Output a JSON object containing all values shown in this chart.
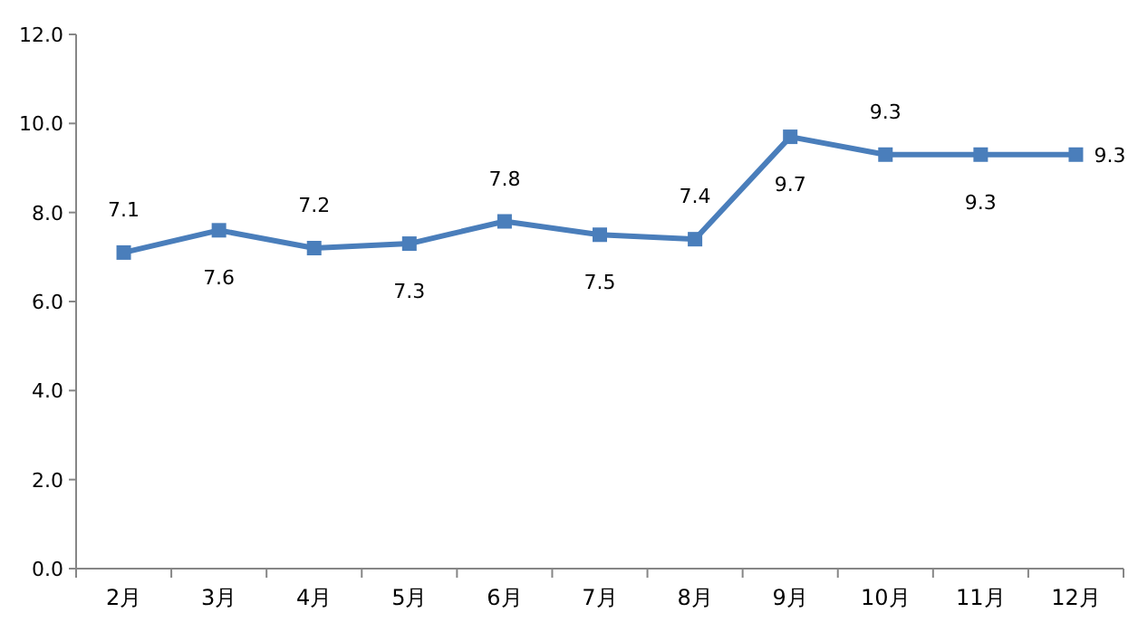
{
  "chart_data": {
    "type": "line",
    "categories": [
      "2月",
      "3月",
      "4月",
      "5月",
      "6月",
      "7月",
      "8月",
      "9月",
      "10月",
      "11月",
      "12月"
    ],
    "series": [
      {
        "color": "#4a7ebb",
        "values": [
          7.1,
          7.6,
          7.2,
          7.3,
          7.8,
          7.5,
          7.4,
          9.7,
          9.3,
          9.3,
          9.3
        ]
      }
    ],
    "ylim": [
      0,
      12
    ],
    "yticks": [
      {
        "value": 0,
        "label": "0.0"
      },
      {
        "value": 2,
        "label": "2.0"
      },
      {
        "value": 4,
        "label": "4.0"
      },
      {
        "value": 6,
        "label": "6.0"
      },
      {
        "value": 8,
        "label": "8.0"
      },
      {
        "value": 10,
        "label": "10.0"
      },
      {
        "value": 12,
        "label": "12.0"
      }
    ],
    "data_labels": true,
    "marker": "square",
    "line_style": "solid",
    "grid": false
  }
}
